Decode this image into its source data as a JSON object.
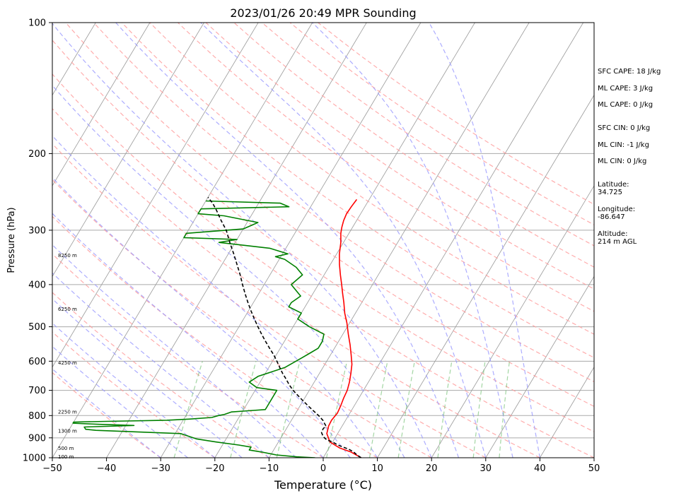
{
  "chart_data": {
    "type": "line",
    "title": "2023/01/26 20:49 MPR Sounding",
    "xlabel": "Temperature (°C)",
    "ylabel": "Pressure (hPa)",
    "xlim": [
      -50,
      50
    ],
    "ylim": [
      1000,
      100
    ],
    "y_scale": "log",
    "x_ticks": [
      -50,
      -40,
      -30,
      -20,
      -10,
      0,
      10,
      20,
      30,
      40,
      50
    ],
    "y_ticks": [
      1000,
      900,
      800,
      700,
      600,
      500,
      400,
      300,
      200,
      100
    ],
    "grid": "horizontal at pressure ticks",
    "series": [
      {
        "color": "#ff0000",
        "points": [
          [
            7,
            1000
          ],
          [
            4.5,
            970
          ],
          [
            2,
            950
          ],
          [
            -0.5,
            920
          ],
          [
            -2,
            880
          ],
          [
            -2.5,
            845
          ],
          [
            -2.6,
            820
          ],
          [
            -2.3,
            790
          ],
          [
            -2.5,
            760
          ],
          [
            -2.8,
            730
          ],
          [
            -3,
            700
          ],
          [
            -3.5,
            670
          ],
          [
            -4.2,
            640
          ],
          [
            -5,
            610
          ],
          [
            -6.2,
            580
          ],
          [
            -7.5,
            550
          ],
          [
            -9,
            520
          ],
          [
            -10.5,
            490
          ],
          [
            -12,
            465
          ],
          [
            -13.3,
            440
          ],
          [
            -14.5,
            420
          ],
          [
            -15.7,
            400
          ],
          [
            -17,
            380
          ],
          [
            -18.3,
            360
          ],
          [
            -19.5,
            340
          ],
          [
            -20.5,
            320
          ],
          [
            -21.5,
            305
          ],
          [
            -22,
            295
          ],
          [
            -22.4,
            285
          ],
          [
            -22.6,
            275
          ],
          [
            -22.5,
            265
          ],
          [
            -22.3,
            255
          ]
        ]
      },
      {
        "color": "#008000",
        "points": [
          [
            -1.5,
            1000
          ],
          [
            -5,
            995
          ],
          [
            -9,
            985
          ],
          [
            -12,
            970
          ],
          [
            -14.5,
            960
          ],
          [
            -14.5,
            945
          ],
          [
            -17,
            935
          ],
          [
            -21.5,
            920
          ],
          [
            -25.5,
            905
          ],
          [
            -29,
            880
          ],
          [
            -45,
            865
          ],
          [
            -47,
            860
          ],
          [
            -47.5,
            850
          ],
          [
            -38.5,
            843
          ],
          [
            -45,
            838
          ],
          [
            -50,
            833
          ],
          [
            -50,
            828
          ],
          [
            -44,
            825
          ],
          [
            -33,
            820
          ],
          [
            -29,
            815
          ],
          [
            -25,
            808
          ],
          [
            -24,
            800
          ],
          [
            -23,
            795
          ],
          [
            -22,
            785
          ],
          [
            -19,
            780
          ],
          [
            -16,
            775
          ],
          [
            -16,
            770
          ],
          [
            -16,
            700
          ],
          [
            -20,
            690
          ],
          [
            -22,
            670
          ],
          [
            -21,
            650
          ],
          [
            -17,
            620
          ],
          [
            -15,
            590
          ],
          [
            -14,
            575
          ],
          [
            -13,
            560
          ],
          [
            -13,
            540
          ],
          [
            -13.5,
            520
          ],
          [
            -17,
            500
          ],
          [
            -20,
            480
          ],
          [
            -20,
            465
          ],
          [
            -23,
            450
          ],
          [
            -23,
            440
          ],
          [
            -22,
            425
          ],
          [
            -25,
            400
          ],
          [
            -24,
            380
          ],
          [
            -26,
            365
          ],
          [
            -29,
            350
          ],
          [
            -31,
            345
          ],
          [
            -29,
            340
          ],
          [
            -33,
            330
          ],
          [
            -43,
            320
          ],
          [
            -40,
            315
          ],
          [
            -50,
            312
          ],
          [
            -50,
            305
          ],
          [
            -40,
            298
          ],
          [
            -38,
            288
          ],
          [
            -45,
            278
          ],
          [
            -50,
            275
          ],
          [
            -50,
            268
          ],
          [
            -34,
            265
          ],
          [
            -36,
            260
          ],
          [
            -50,
            257
          ]
        ]
      },
      {
        "color": "#000000",
        "dashed": true,
        "points": [
          [
            7,
            1000
          ],
          [
            5.9,
            985
          ],
          [
            5,
            970
          ],
          [
            3.7,
            955
          ],
          [
            2.5,
            945
          ],
          [
            1.3,
            935
          ],
          [
            0,
            920
          ],
          [
            -1.3,
            910
          ],
          [
            -2.3,
            895
          ],
          [
            -3.1,
            875
          ],
          [
            -3.2,
            858
          ],
          [
            -3,
            845
          ],
          [
            -3.5,
            835
          ],
          [
            -4.2,
            820
          ],
          [
            -5.5,
            800
          ],
          [
            -7,
            780
          ],
          [
            -8.5,
            760
          ],
          [
            -10,
            740
          ],
          [
            -11.5,
            720
          ],
          [
            -13,
            700
          ],
          [
            -14.3,
            680
          ],
          [
            -15.5,
            660
          ],
          [
            -16.8,
            640
          ],
          [
            -18,
            620
          ],
          [
            -19.2,
            600
          ],
          [
            -20.5,
            580
          ],
          [
            -22,
            560
          ],
          [
            -23.5,
            540
          ],
          [
            -25,
            520
          ],
          [
            -26.5,
            500
          ],
          [
            -28,
            480
          ],
          [
            -29.5,
            460
          ],
          [
            -31,
            440
          ],
          [
            -32.5,
            420
          ],
          [
            -34,
            400
          ],
          [
            -35.5,
            380
          ],
          [
            -37.2,
            360
          ],
          [
            -39,
            340
          ],
          [
            -41,
            320
          ],
          [
            -43,
            300
          ],
          [
            -45,
            285
          ],
          [
            -47,
            270
          ],
          [
            -48.5,
            260
          ],
          [
            -50,
            252
          ]
        ]
      }
    ],
    "height_labels": [
      {
        "label": "100 m",
        "p": 995
      },
      {
        "label": "500 m",
        "p": 950
      },
      {
        "label": "1300 m",
        "p": 868
      },
      {
        "label": "2250 m",
        "p": 785
      },
      {
        "label": "4250 m",
        "p": 605
      },
      {
        "label": "6250 m",
        "p": 455
      },
      {
        "label": "8250 m",
        "p": 343
      }
    ],
    "info": [
      "SFC CAPE: 18 J/kg",
      "ML CAPE: 3 J/kg",
      "ML CAPE: 0 J/kg",
      "SFC CIN: 0 J/kg",
      "ML CIN: -1 J/kg",
      "ML CIN: 0 J/kg",
      "Latitude:",
      "34.725",
      "Longitude:",
      "-86.647",
      "Altitude:",
      "214 m AGL"
    ],
    "colors": {
      "temperature": "#ff0000",
      "dewpoint": "#008000",
      "parcel": "#000000",
      "dry_adiabat": "#ff9999",
      "moist_adiabat": "#9999ff",
      "mixing_ratio": "#66bb66",
      "isotherm": "#999999"
    }
  }
}
